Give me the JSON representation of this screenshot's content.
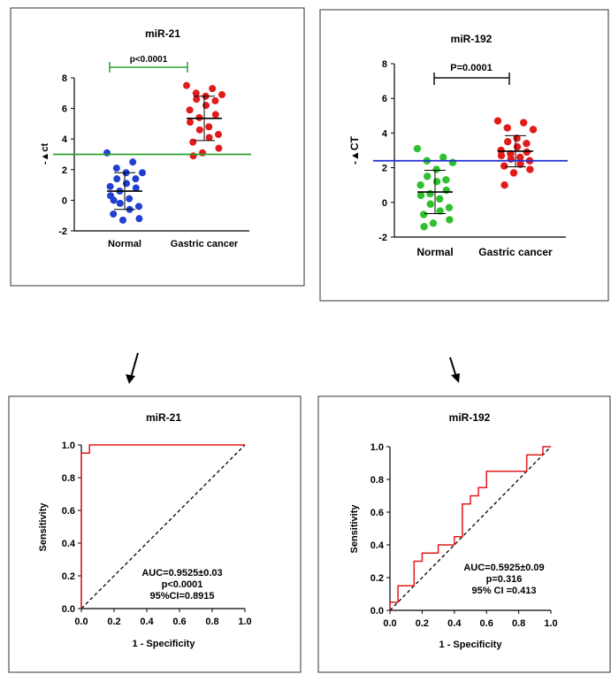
{
  "chart_data": [
    {
      "type": "scatter",
      "title": "miR-21",
      "ylabel": "-▲ct",
      "ylim": [
        -2,
        8
      ],
      "yticks": [
        "-2",
        "0",
        "2",
        "4",
        "6",
        "8"
      ],
      "categories": [
        "Normal",
        "Gastric cancer"
      ],
      "series": [
        {
          "color": "#1f3fd0",
          "values": [
            3.1,
            2.5,
            2.1,
            1.8,
            1.8,
            1.4,
            1.4,
            1.1,
            0.9,
            0.8,
            0.6,
            0.3,
            0.1,
            -0.2,
            -0.4,
            -0.6,
            -0.9,
            -1.2,
            -1.3,
            0.0
          ]
        },
        {
          "color": "#e21a1a",
          "values": [
            7.5,
            7.3,
            7.0,
            6.9,
            6.8,
            6.6,
            6.5,
            6.2,
            5.9,
            5.6,
            5.4,
            5.1,
            4.8,
            4.6,
            4.3,
            4.1,
            3.8,
            3.4,
            3.1,
            2.9
          ]
        }
      ],
      "means": [
        0.6,
        5.35
      ],
      "sds": [
        1.2,
        1.45
      ],
      "cutoff": 3.0,
      "cutoff_color": "#2ea02e",
      "bracket_color": "#2ea02e",
      "pvalue": "p<0.0001"
    },
    {
      "type": "scatter",
      "title": "miR-192",
      "ylabel": "-▲CT",
      "ylim": [
        -2,
        8
      ],
      "yticks": [
        "-2",
        "0",
        "2",
        "4",
        "6",
        "8"
      ],
      "categories": [
        "Normal",
        "Gastric cancer"
      ],
      "series": [
        {
          "color": "#2ec02e",
          "values": [
            3.1,
            2.6,
            2.4,
            2.3,
            1.9,
            1.5,
            1.3,
            1.2,
            1.0,
            0.7,
            0.5,
            0.4,
            0.2,
            -0.1,
            -0.3,
            -0.5,
            -0.7,
            -1.0,
            -1.2,
            -1.4
          ]
        },
        {
          "color": "#e21a1a",
          "values": [
            4.7,
            4.6,
            4.3,
            4.2,
            3.7,
            3.5,
            3.4,
            3.2,
            3.0,
            2.9,
            2.8,
            2.7,
            2.6,
            2.5,
            2.4,
            2.2,
            2.1,
            1.9,
            1.7,
            1.0
          ]
        }
      ],
      "means": [
        0.6,
        2.95
      ],
      "sds": [
        1.25,
        0.9
      ],
      "cutoff": 2.4,
      "cutoff_color": "#1f2fd0",
      "bracket_color": "#111111",
      "pvalue": "P=0.0001"
    },
    {
      "type": "line",
      "title": "miR-21",
      "xlabel": "1 - Specificity",
      "ylabel": "Sensitivity",
      "xlim": [
        0,
        1
      ],
      "ylim": [
        0,
        1
      ],
      "ticks": [
        "0.0",
        "0.2",
        "0.4",
        "0.6",
        "0.8",
        "1.0"
      ],
      "series": [
        {
          "color": "#e21a1a",
          "x": [
            0,
            0,
            0.05,
            0.05,
            0.05,
            1.0
          ],
          "y": [
            0,
            0.95,
            0.95,
            0.95,
            1.0,
            1.0
          ]
        }
      ],
      "annotation": [
        "AUC=0.9525±0.03",
        "p<0.0001",
        "95%CI=0.8915"
      ]
    },
    {
      "type": "line",
      "title": "miR-192",
      "xlabel": "1 - Specificity",
      "ylabel": "Sensitivity",
      "xlim": [
        0,
        1
      ],
      "ylim": [
        0,
        1
      ],
      "ticks": [
        "0.0",
        "0.2",
        "0.4",
        "0.6",
        "0.8",
        "1.0"
      ],
      "series": [
        {
          "color": "#e21a1a",
          "x": [
            0,
            0,
            0.05,
            0.05,
            0.15,
            0.15,
            0.2,
            0.2,
            0.3,
            0.3,
            0.4,
            0.4,
            0.45,
            0.45,
            0.5,
            0.5,
            0.55,
            0.55,
            0.6,
            0.6,
            0.85,
            0.85,
            0.95,
            0.95,
            1.0
          ],
          "y": [
            0,
            0.05,
            0.05,
            0.15,
            0.15,
            0.3,
            0.3,
            0.35,
            0.35,
            0.4,
            0.4,
            0.45,
            0.45,
            0.65,
            0.65,
            0.7,
            0.7,
            0.75,
            0.75,
            0.85,
            0.85,
            0.95,
            0.95,
            1.0,
            1.0
          ]
        }
      ],
      "annotation": [
        "AUC=0.5925±0.09",
        "p=0.316",
        "95% CI =0.413"
      ]
    }
  ]
}
